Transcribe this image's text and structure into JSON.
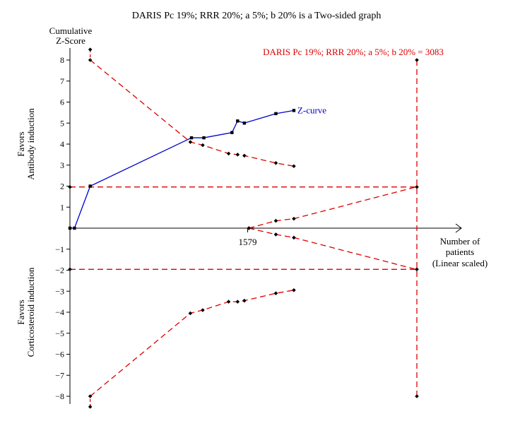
{
  "chart_data": {
    "type": "line",
    "title": "DARIS Pc 19%; RRR 20%; a 5%; b 20% is a Two-sided graph",
    "ylabel": "Cumulative Z-Score",
    "ylabel_line1": "Cumulative",
    "ylabel_line2": "Z-Score",
    "xlabel_line1": "Number of",
    "xlabel_line2": "patients",
    "xlabel_line3": "(Linear scaled)",
    "favors_top_line1": "Favors",
    "favors_top_line2": "Antibody induction",
    "favors_bottom_line1": "Favors",
    "favors_bottom_line2": "Corticosteroid induction",
    "ylim": [
      -8,
      8
    ],
    "xlim": [
      0,
      3083
    ],
    "yticks": [
      8,
      7,
      6,
      5,
      4,
      3,
      2,
      1,
      -1,
      -2,
      -3,
      -4,
      -5,
      -6,
      -7,
      -8
    ],
    "xtick_value": 1579,
    "xtick_label": "1579",
    "daris_label": "DARIS Pc 19%; RRR 20%; a 5%; b 20% = 3083",
    "daris_value": 3083,
    "colors": {
      "zcurve": "#0000cc",
      "boundary": "#dd0000",
      "axis": "#000000",
      "text_red": "#dd0000"
    },
    "series": [
      {
        "name": "Z-curve",
        "color": "#0000cc",
        "x": [
          0,
          40,
          180,
          1080,
          1190,
          1440,
          1490,
          1550,
          1830,
          1990
        ],
        "y": [
          0,
          0,
          2.0,
          4.3,
          4.3,
          4.55,
          5.1,
          5.0,
          5.45,
          5.6
        ]
      }
    ],
    "monitoring_upper": {
      "x": [
        180,
        1070,
        1180,
        1410,
        1490,
        1550,
        1830,
        1990
      ],
      "y": [
        8.0,
        4.1,
        3.95,
        3.55,
        3.5,
        3.45,
        3.1,
        2.95
      ]
    },
    "monitoring_lower": {
      "x": [
        180,
        1070,
        1180,
        1410,
        1490,
        1550,
        1830,
        1990
      ],
      "y": [
        -8.0,
        -4.05,
        -3.9,
        -3.5,
        -3.5,
        -3.45,
        -3.1,
        -2.95
      ]
    },
    "monitoring_upper_extra": {
      "x": [
        180
      ],
      "y": [
        8.5
      ]
    },
    "monitoring_lower_extra": {
      "x": [
        180
      ],
      "y": [
        -8.5
      ]
    },
    "futility_upper": {
      "x": [
        1590,
        1830,
        1990,
        3083
      ],
      "y": [
        0,
        0.35,
        0.45,
        1.97
      ]
    },
    "futility_lower": {
      "x": [
        1590,
        1830,
        1990,
        3083
      ],
      "y": [
        0,
        -0.3,
        -0.45,
        -1.97
      ]
    },
    "conventional": {
      "values": [
        1.96,
        -1.96
      ],
      "x_start": 0,
      "x_end": 3083
    },
    "daris_line": {
      "x": 3083,
      "y_top": 8,
      "y_bottom": -8
    },
    "legend": "none",
    "grid": false
  }
}
